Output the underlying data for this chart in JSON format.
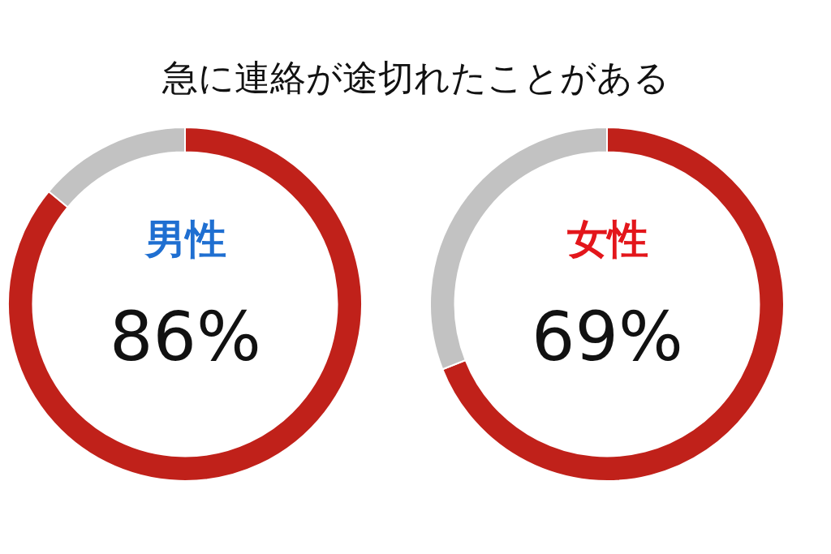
{
  "chart_data": [
    {
      "type": "donut",
      "title": "急に連絡が途切れたことがある",
      "subtitle": "男性",
      "categories": [
        null,
        null
      ],
      "values": [
        86,
        14
      ],
      "colors": [
        "#c0211a",
        "#c2c2c2"
      ],
      "value_labels": [
        "86%",
        null
      ]
    },
    {
      "type": "donut",
      "subtitle": "女性",
      "categories": [
        null,
        null
      ],
      "values": [
        69,
        31
      ],
      "colors": [
        "#c0211a",
        "#c2c2c2"
      ],
      "value_labels": [
        "69%",
        null
      ]
    }
  ]
}
